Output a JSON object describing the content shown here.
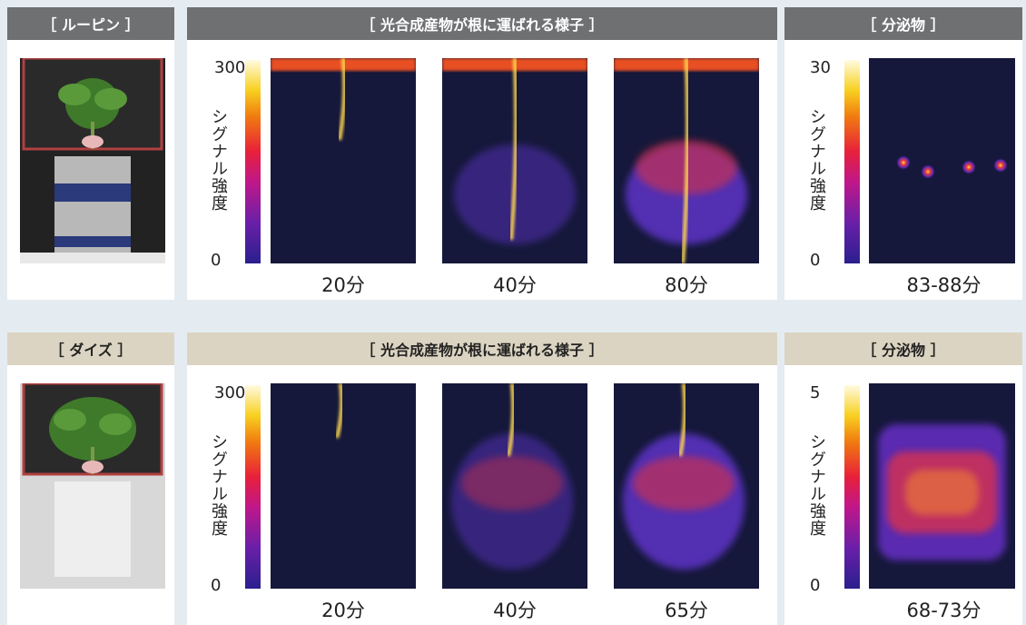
{
  "rows": [
    {
      "plant_header": "［ ルーピン ］",
      "transport_header": "［ 光合成産物が根に運ばれる様子 ］",
      "secretion_header": "［ 分泌物 ］",
      "transport_scale": {
        "max": 300,
        "min": 0,
        "label": "シグナル強度"
      },
      "transport_times": [
        "20分",
        "40分",
        "80分"
      ],
      "secretion_scale": {
        "max": 30,
        "min": 0,
        "label": "シグナル強度"
      },
      "secretion_time": "83-88分"
    },
    {
      "plant_header": "［ ダイズ ］",
      "transport_header": "［ 光合成産物が根に運ばれる様子 ］",
      "secretion_header": "［ 分泌物 ］",
      "transport_scale": {
        "max": 300,
        "min": 0,
        "label": "シグナル強度"
      },
      "transport_times": [
        "20分",
        "40分",
        "65分"
      ],
      "secretion_scale": {
        "max": 5,
        "min": 0,
        "label": "シグナル強度"
      },
      "secretion_time": "68-73分"
    }
  ]
}
